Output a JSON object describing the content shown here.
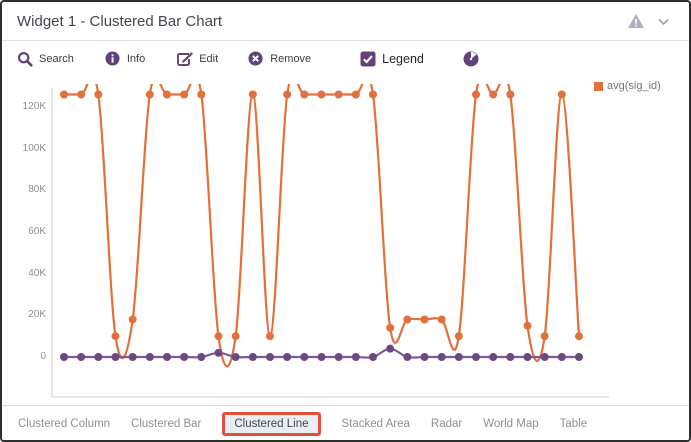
{
  "header": {
    "title": "Widget 1 - Clustered Bar Chart",
    "warning_icon": "warning-triangle",
    "collapse_icon": "chevron-down"
  },
  "toolbar": {
    "search_label": "Search",
    "info_label": "Info",
    "edit_label": "Edit",
    "remove_label": "Remove",
    "legend_label": "Legend",
    "legend_checked": true,
    "globe_icon": "globe"
  },
  "chart_data": {
    "type": "line",
    "smooth": true,
    "grid": false,
    "unit": "K",
    "ytick_labels": [
      "0",
      "20K",
      "40K",
      "60K",
      "80K",
      "100K",
      "120K"
    ],
    "ylim_k": [
      0,
      130
    ],
    "legend": {
      "position": "top-right",
      "entries": [
        {
          "label": "avg(sig_id)",
          "color": "#e1703a"
        }
      ]
    },
    "series": [
      {
        "name": "avg(sig_id)",
        "color": "#e1703a",
        "values_k": [
          126,
          126,
          126,
          10,
          18,
          126,
          126,
          126,
          126,
          10,
          10,
          126,
          10,
          126,
          126,
          126,
          126,
          126,
          126,
          14,
          18,
          18,
          18,
          10,
          126,
          126,
          126,
          15,
          10,
          126,
          10
        ]
      },
      {
        "name": "",
        "color": "#6b4a7f",
        "line_color": "#7a5a96",
        "values_k": [
          0,
          0,
          0,
          0,
          0,
          0,
          0,
          0,
          0,
          2,
          0,
          0,
          0,
          0,
          0,
          0,
          0,
          0,
          0,
          4,
          0,
          0,
          0,
          0,
          0,
          0,
          0,
          0,
          0,
          0,
          0
        ]
      }
    ]
  },
  "tabs": {
    "items": [
      {
        "label": "Clustered Column",
        "active": false
      },
      {
        "label": "Clustered Bar",
        "active": false
      },
      {
        "label": "Clustered Line",
        "active": true
      },
      {
        "label": "Stacked Area",
        "active": false
      },
      {
        "label": "Radar",
        "active": false
      },
      {
        "label": "World Map",
        "active": false
      },
      {
        "label": "Table",
        "active": false
      }
    ]
  },
  "colors": {
    "accent_purple": "#63417a",
    "series_orange": "#e1703a",
    "series_purple": "#6b4a7f",
    "active_tab_border": "#e2503c",
    "active_tab_bg": "#e9eef4",
    "axis_line": "#cfcfd2"
  }
}
